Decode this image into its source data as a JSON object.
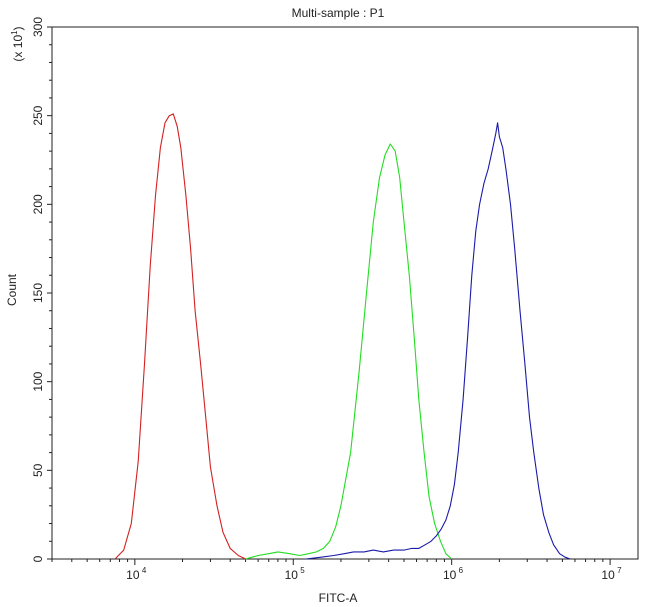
{
  "chart_data": {
    "type": "line",
    "title": "Multi-sample : P1",
    "xlabel": "FITC-A",
    "ylabel": "Count",
    "y_multiplier_label": "(x 10",
    "y_multiplier_exp": "1",
    "y_multiplier_close": ")",
    "xscale": "log",
    "xlim": [
      3000,
      15000000
    ],
    "ylim": [
      0,
      300
    ],
    "x_ticks": [
      {
        "value": 10000,
        "base": "10",
        "exp": "4"
      },
      {
        "value": 100000,
        "base": "10",
        "exp": "5"
      },
      {
        "value": 1000000,
        "base": "10",
        "exp": "6"
      },
      {
        "value": 10000000,
        "base": "10",
        "exp": "7"
      }
    ],
    "y_ticks": [
      {
        "value": 0,
        "label": "0"
      },
      {
        "value": 50,
        "label": "50"
      },
      {
        "value": 100,
        "label": "100"
      },
      {
        "value": 150,
        "label": "150"
      },
      {
        "value": 200,
        "label": "200"
      },
      {
        "value": 250,
        "label": "250"
      },
      {
        "value": 300,
        "label": "300"
      }
    ],
    "grid": false,
    "legend": "none",
    "series": [
      {
        "color": "#d42020",
        "x": [
          7500,
          8500,
          9500,
          10500,
          11500,
          12500,
          13500,
          14500,
          15500,
          16500,
          17500,
          18500,
          19500,
          21000,
          22500,
          24000,
          26000,
          28000,
          30000,
          33000,
          36000,
          40000,
          45000,
          50000
        ],
        "y": [
          0,
          5,
          20,
          55,
          110,
          165,
          205,
          232,
          246,
          250,
          251,
          244,
          232,
          205,
          175,
          140,
          110,
          80,
          52,
          30,
          15,
          6,
          2,
          0
        ]
      },
      {
        "color": "#22dd22",
        "x": [
          50000,
          60000,
          70000,
          80000,
          95000,
          110000,
          125000,
          140000,
          155000,
          170000,
          185000,
          200000,
          230000,
          260000,
          290000,
          320000,
          350000,
          380000,
          410000,
          440000,
          470000,
          500000,
          540000,
          580000,
          620000,
          670000,
          720000,
          780000,
          850000,
          920000,
          1000000
        ],
        "y": [
          0,
          2,
          3,
          4,
          3,
          2,
          3,
          4,
          6,
          10,
          18,
          30,
          60,
          105,
          150,
          190,
          215,
          228,
          234,
          230,
          215,
          190,
          160,
          125,
          90,
          60,
          35,
          20,
          10,
          3,
          0
        ]
      },
      {
        "color": "#1a1aa8",
        "x": [
          120000,
          150000,
          180000,
          210000,
          240000,
          280000,
          320000,
          370000,
          430000,
          500000,
          560000,
          620000,
          680000,
          740000,
          800000,
          860000,
          920000,
          980000,
          1040000,
          1100000,
          1180000,
          1260000,
          1340000,
          1420000,
          1500000,
          1600000,
          1700000,
          1800000,
          1900000,
          1950000,
          2000000,
          2100000,
          2200000,
          2350000,
          2500000,
          2700000,
          2900000,
          3100000,
          3300000,
          3550000,
          3800000,
          4100000,
          4400000,
          4800000,
          5200000,
          5600000
        ],
        "y": [
          0,
          1,
          2,
          3,
          4,
          4,
          5,
          4,
          5,
          5,
          6,
          6,
          8,
          10,
          13,
          17,
          22,
          30,
          42,
          60,
          90,
          125,
          160,
          185,
          200,
          212,
          220,
          230,
          240,
          246,
          238,
          232,
          220,
          200,
          175,
          140,
          110,
          80,
          60,
          40,
          25,
          15,
          8,
          3,
          1,
          0
        ]
      }
    ]
  }
}
